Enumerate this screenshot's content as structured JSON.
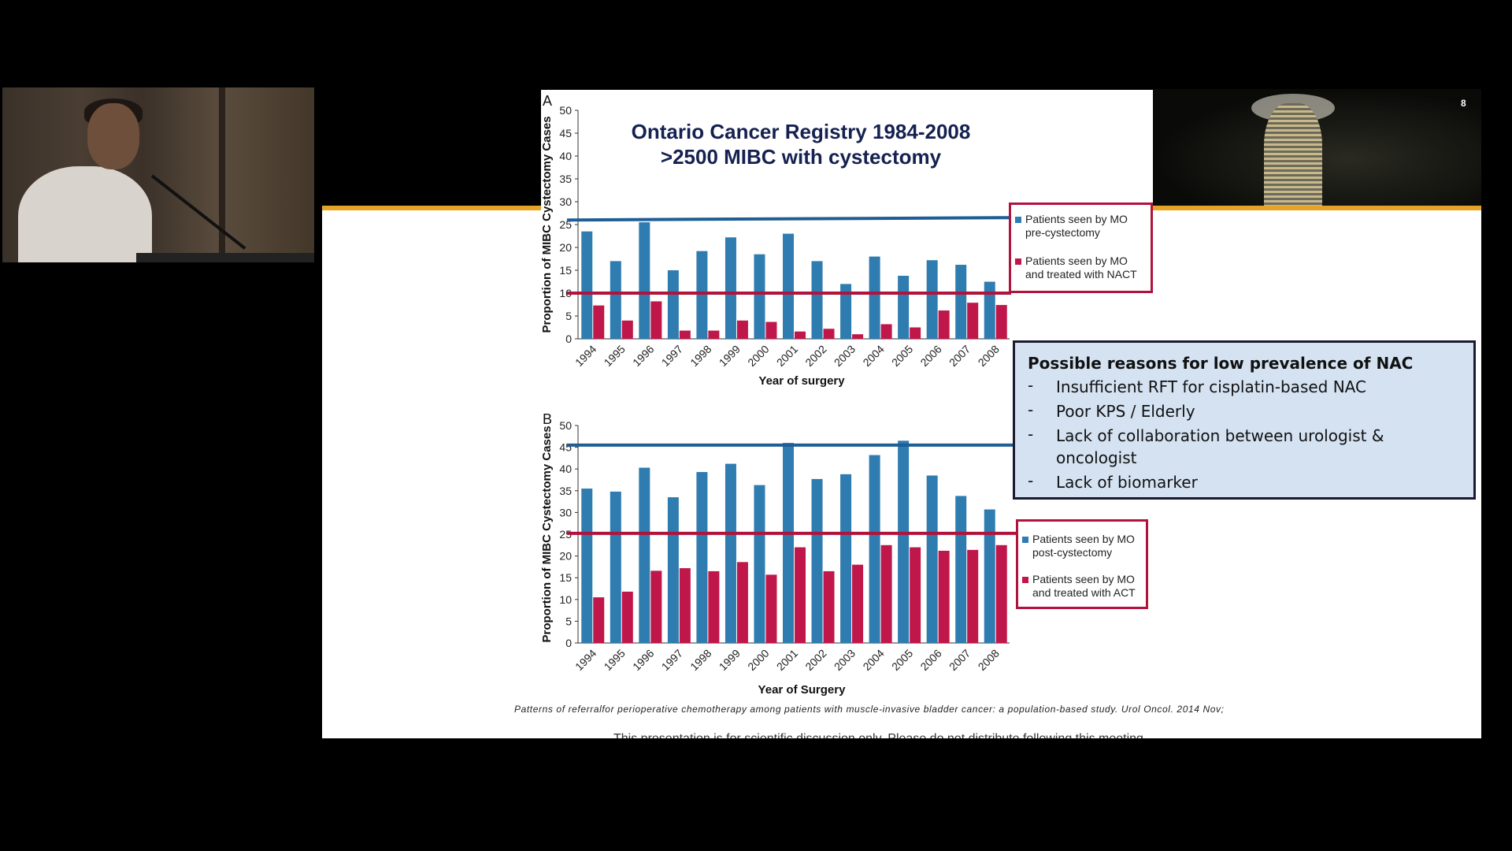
{
  "slide_number": "8",
  "chart_title": {
    "line1": "Ontario Cancer Registry 1984-2008",
    "line2": ">2500 MIBC with cystectomy"
  },
  "chart_data": [
    {
      "type": "bar",
      "panel_label": "A",
      "categories": [
        "1994",
        "1995",
        "1996",
        "1997",
        "1998",
        "1999",
        "2000",
        "2001",
        "2002",
        "2003",
        "2004",
        "2005",
        "2006",
        "2007",
        "2008"
      ],
      "series": [
        {
          "name": "Patients seen by MO pre-cystectomy",
          "color": "#2e7cb0",
          "values": [
            23.5,
            17,
            25.5,
            15,
            19.2,
            22.2,
            18.5,
            23,
            17,
            12,
            18,
            13.8,
            17.2,
            16.2,
            12.5
          ]
        },
        {
          "name": "Patients seen by MO and treated with NACT",
          "color": "#c0174a",
          "values": [
            7.3,
            4,
            8.2,
            1.8,
            1.8,
            4,
            3.7,
            1.6,
            2.2,
            1,
            3.2,
            2.5,
            6.2,
            7.9,
            7.4
          ]
        }
      ],
      "reference_lines": [
        {
          "value": 26,
          "color": "#1f5d94"
        },
        {
          "value": 10,
          "color": "#b0133b"
        }
      ],
      "xlabel": "Year of surgery",
      "ylabel": "Proportion of MIBC Cystectomy Cases",
      "ylim": [
        0,
        50
      ],
      "yticks": [
        0,
        5,
        10,
        15,
        20,
        25,
        30,
        35,
        40,
        45,
        50
      ],
      "legend": {
        "position": "right",
        "items": [
          {
            "line1": "Patients seen by MO",
            "line2": "pre-cystectomy",
            "color": "#2e7cb0"
          },
          {
            "line1": "Patients seen by MO",
            "line2": "and treated with NACT",
            "color": "#c0174a"
          }
        ]
      }
    },
    {
      "type": "bar",
      "panel_label": "B",
      "categories": [
        "1994",
        "1995",
        "1996",
        "1997",
        "1998",
        "1999",
        "2000",
        "2001",
        "2002",
        "2003",
        "2004",
        "2005",
        "2006",
        "2007",
        "2008"
      ],
      "series": [
        {
          "name": "Patients seen by MO post-cystectomy",
          "color": "#2e7cb0",
          "values": [
            35.5,
            34.8,
            40.3,
            33.5,
            39.3,
            41.2,
            36.3,
            46,
            37.7,
            38.8,
            43.2,
            46.5,
            38.5,
            33.8,
            30.7
          ]
        },
        {
          "name": "Patients seen by MO and treated with ACT",
          "color": "#c0174a",
          "values": [
            10.5,
            11.8,
            16.6,
            17.2,
            16.5,
            18.6,
            15.7,
            22,
            16.5,
            18,
            22.5,
            22,
            21.2,
            21.4,
            22.5
          ]
        }
      ],
      "reference_lines": [
        {
          "value": 45.5,
          "color": "#1f5d94"
        },
        {
          "value": 25.2,
          "color": "#b0133b"
        }
      ],
      "xlabel": "Year of Surgery",
      "ylabel": "Proportion of MIBC Cystectomy Cases",
      "ylim": [
        0,
        50
      ],
      "yticks": [
        0,
        5,
        10,
        15,
        20,
        25,
        30,
        35,
        40,
        45,
        50
      ],
      "legend": {
        "position": "right",
        "items": [
          {
            "line1": "Patients seen by MO",
            "line2": "post-cystectomy",
            "color": "#2e7cb0"
          },
          {
            "line1": "Patients seen by MO",
            "line2": "and treated with ACT",
            "color": "#c0174a"
          }
        ]
      }
    }
  ],
  "reasons": {
    "title": "Possible reasons for low prevalence of NAC",
    "dash": "-",
    "items": [
      "Insufficient RFT for cisplatin-based NAC",
      "Poor KPS / Elderly",
      "Lack of collaboration between urologist & oncologist",
      "Lack of biomarker"
    ]
  },
  "citation": "Patterns of referralfor perioperative chemotherapy among patients with muscle-invasive bladder cancer: a population-based study. Urol Oncol. 2014 Nov;",
  "footer_note": "This presentation is for scientific discussion only.  Please do not distribute following this meeting."
}
